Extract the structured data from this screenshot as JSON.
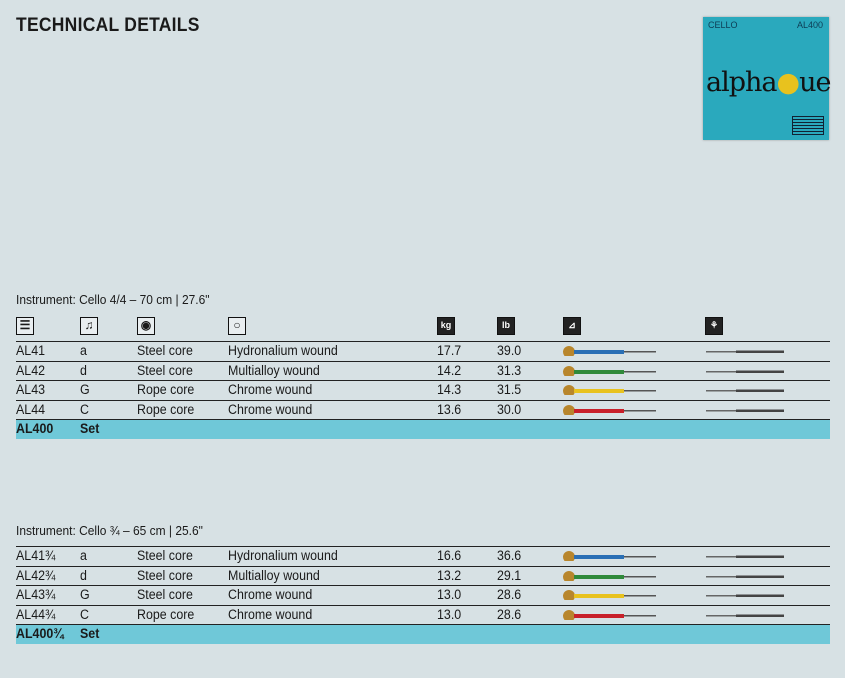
{
  "title": "TECHNICAL DETAILS",
  "package": {
    "instrument": "CELLO",
    "model": "AL400",
    "brand": "alphayue"
  },
  "header_icons": [
    {
      "name": "list-icon",
      "glyph": "☰"
    },
    {
      "name": "note-icon",
      "glyph": "♫"
    },
    {
      "name": "core-icon",
      "glyph": "◉"
    },
    {
      "name": "winding-icon",
      "glyph": "○"
    },
    {
      "name": "kg-weight-icon",
      "glyph": "kg"
    },
    {
      "name": "lb-weight-icon",
      "glyph": "lb"
    },
    {
      "name": "tailpiece-icon",
      "glyph": "⊿"
    },
    {
      "name": "bridge-icon",
      "glyph": "⚘"
    }
  ],
  "tables": [
    {
      "label": "Instrument: Cello 4/4 – 70 cm | 27.6\"",
      "rows": [
        {
          "code": "AL41",
          "note": "a",
          "core": "Steel core",
          "winding": "Hydronalium wound",
          "kg": "17.7",
          "lb": "39.0",
          "color": "#2a6fb5"
        },
        {
          "code": "AL42",
          "note": "d",
          "core": "Steel core",
          "winding": "Multialloy wound",
          "kg": "14.2",
          "lb": "31.3",
          "color": "#2f8a3a"
        },
        {
          "code": "AL43",
          "note": "G",
          "core": "Rope core",
          "winding": "Chrome wound",
          "kg": "14.3",
          "lb": "31.5",
          "color": "#e8c21e"
        },
        {
          "code": "AL44",
          "note": "C",
          "core": "Rope core",
          "winding": "Chrome wound",
          "kg": "13.6",
          "lb": "30.0",
          "color": "#c8202a"
        }
      ],
      "set": {
        "code": "AL400",
        "label": "Set"
      }
    },
    {
      "label": "Instrument: Cello ¾ – 65 cm | 25.6\"",
      "rows": [
        {
          "code": "AL41¾",
          "note": "a",
          "core": "Steel core",
          "winding": "Hydronalium wound",
          "kg": "16.6",
          "lb": "36.6",
          "color": "#2a6fb5"
        },
        {
          "code": "AL42¾",
          "note": "d",
          "core": "Steel core",
          "winding": "Multialloy wound",
          "kg": "13.2",
          "lb": "29.1",
          "color": "#2f8a3a"
        },
        {
          "code": "AL43¾",
          "note": "G",
          "core": "Steel core",
          "winding": "Chrome wound",
          "kg": "13.0",
          "lb": "28.6",
          "color": "#e8c21e"
        },
        {
          "code": "AL44¾",
          "note": "C",
          "core": "Rope core",
          "winding": "Chrome wound",
          "kg": "13.0",
          "lb": "28.6",
          "color": "#c8202a"
        }
      ],
      "set": {
        "code": "AL400¾",
        "label": "Set"
      }
    }
  ]
}
